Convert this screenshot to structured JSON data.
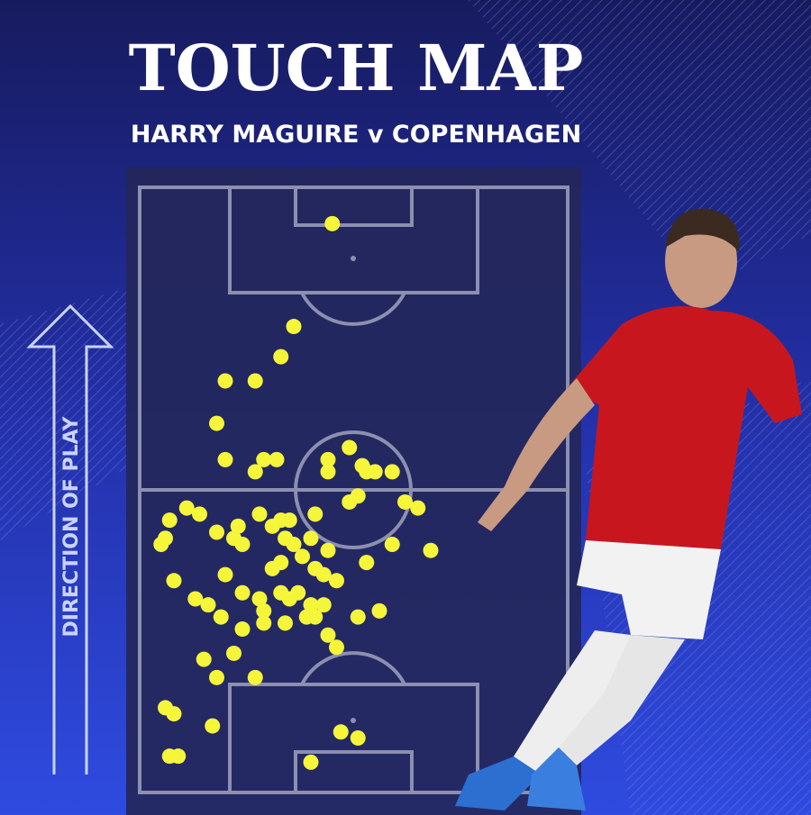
{
  "chart_data": {
    "type": "scatter",
    "title": "TOUCH MAP",
    "subtitle": "HARRY MAGUIRE v COPENHAGEN",
    "annotation": "DIRECTION OF PLAY",
    "color": "#f5f53a",
    "xlim": [
      0,
      100
    ],
    "ylim": [
      0,
      100
    ],
    "x": [
      45,
      36,
      33,
      20,
      27,
      18,
      20,
      27,
      29,
      32,
      44,
      44,
      49,
      52,
      53,
      55,
      59,
      51,
      49,
      62,
      65,
      41,
      7,
      11,
      14,
      6,
      5,
      18,
      22,
      24,
      23,
      28,
      31,
      33,
      35,
      34,
      36,
      40,
      44,
      38,
      33,
      31,
      41,
      59,
      68,
      53,
      20,
      8,
      43,
      46,
      24,
      28,
      33,
      37,
      13,
      16,
      19,
      29,
      35,
      40,
      43,
      29,
      34,
      39,
      41,
      51,
      56,
      24,
      44,
      46,
      15,
      22,
      18,
      27,
      6,
      8,
      17,
      47,
      51,
      7,
      9,
      40
    ],
    "y": [
      94,
      77,
      72,
      68,
      68,
      61,
      55,
      53,
      55,
      55,
      55,
      53,
      57,
      54,
      53,
      53,
      53,
      49,
      48,
      48,
      47,
      46,
      45,
      47,
      46,
      42,
      41,
      43,
      42,
      41,
      44,
      46,
      44,
      45,
      45,
      42,
      41,
      42,
      40,
      39,
      38,
      37,
      37,
      41,
      40,
      38,
      36,
      35,
      36,
      35,
      33,
      32,
      33,
      33,
      32,
      31,
      29,
      30,
      32,
      31,
      31,
      28,
      28,
      29,
      29,
      29,
      30,
      27,
      26,
      24,
      22,
      23,
      19,
      19,
      14,
      13,
      11,
      10,
      9,
      6,
      6,
      5
    ]
  }
}
